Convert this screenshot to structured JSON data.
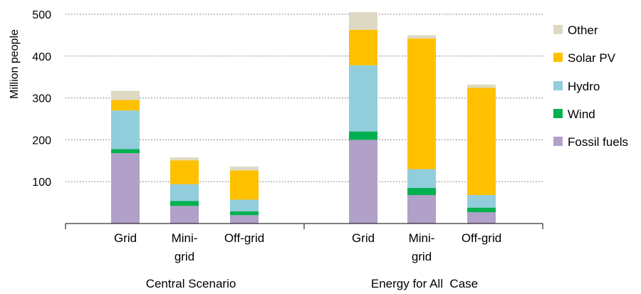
{
  "chart_data": {
    "type": "bar",
    "stacked": true,
    "ylabel": "Million people",
    "ylim": [
      0,
      500
    ],
    "yticks": [
      100,
      200,
      300,
      400,
      500
    ],
    "grid": true,
    "legend_position": "right",
    "groups": [
      {
        "label": "Central Scenario",
        "categories": [
          "Grid",
          "Mini-\ngrid",
          "Off-grid"
        ]
      },
      {
        "label": "Energy for All  Case",
        "categories": [
          "Grid",
          "Mini-\ngrid",
          "Off-grid"
        ]
      }
    ],
    "series": [
      {
        "name": "Fossil fuels",
        "color": "#b1a0c7",
        "values": [
          168,
          42,
          20,
          200,
          68,
          27
        ]
      },
      {
        "name": "Wind",
        "color": "#00b050",
        "values": [
          10,
          12,
          9,
          20,
          17,
          11
        ]
      },
      {
        "name": "Hydro",
        "color": "#92cddc",
        "values": [
          92,
          40,
          28,
          158,
          45,
          30
        ]
      },
      {
        "name": "Solar PV",
        "color": "#ffc000",
        "values": [
          25,
          57,
          70,
          85,
          312,
          256
        ]
      },
      {
        "name": "Other",
        "color": "#ddd9c4",
        "values": [
          22,
          7,
          9,
          42,
          8,
          8
        ]
      }
    ]
  }
}
